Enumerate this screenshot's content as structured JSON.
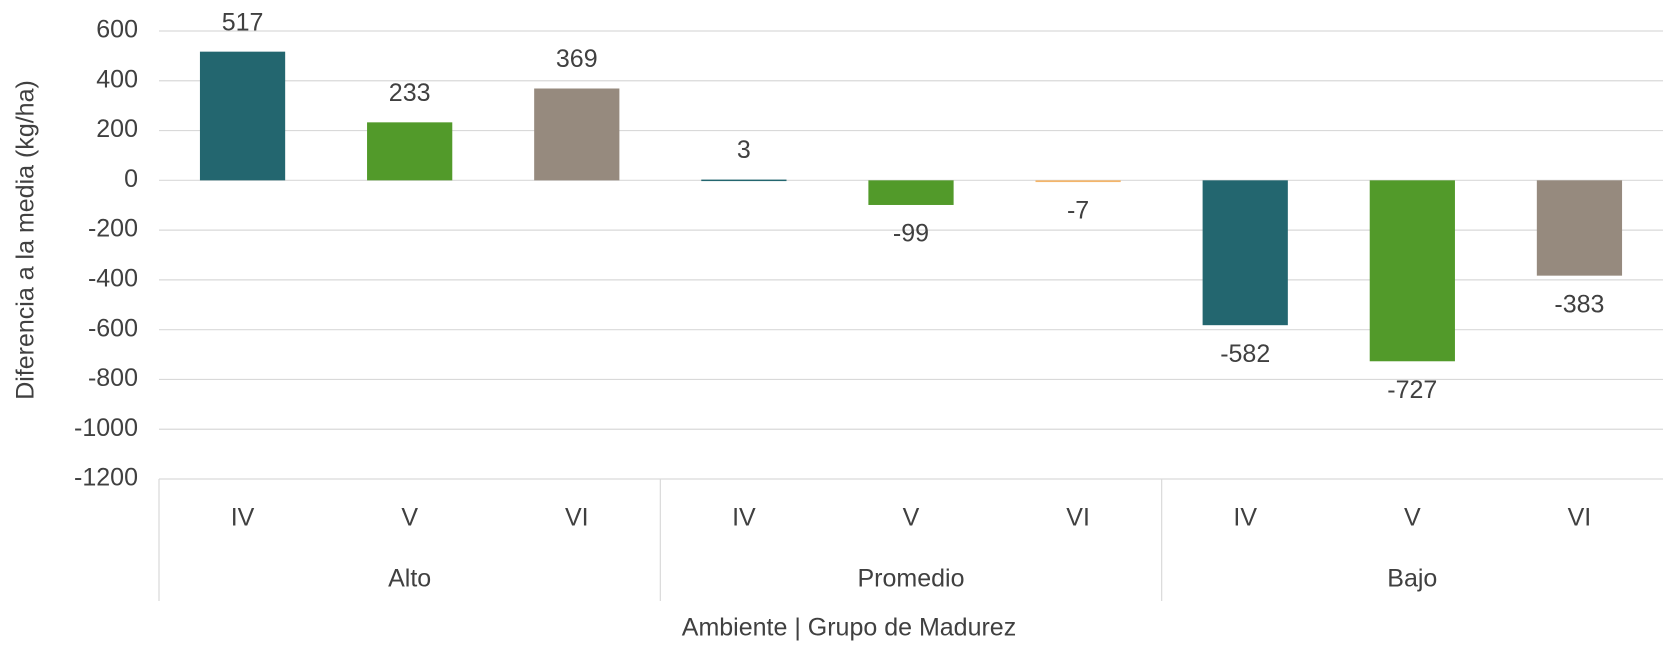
{
  "chart_data": {
    "type": "bar",
    "categories": [
      "IV",
      "V",
      "VI",
      "IV",
      "V",
      "VI",
      "IV",
      "V",
      "VI"
    ],
    "groups": [
      "Alto",
      "Promedio",
      "Bajo"
    ],
    "values": [
      517,
      233,
      369,
      3,
      -99,
      -7,
      -582,
      -727,
      -383
    ],
    "colors": [
      "#23666f",
      "#529a2a",
      "#968a7e",
      "#23666f",
      "#529a2a",
      "#f4b56a",
      "#23666f",
      "#529a2a",
      "#968a7e"
    ],
    "ylim": [
      -1200,
      600
    ],
    "yticks": [
      -1200,
      -1000,
      -800,
      -600,
      -400,
      -200,
      0,
      200,
      400,
      600
    ],
    "ylabel": "Diferencia a la media (kg/ha)",
    "xlabel": "Ambiente | Grupo de Madurez",
    "grid": true
  }
}
